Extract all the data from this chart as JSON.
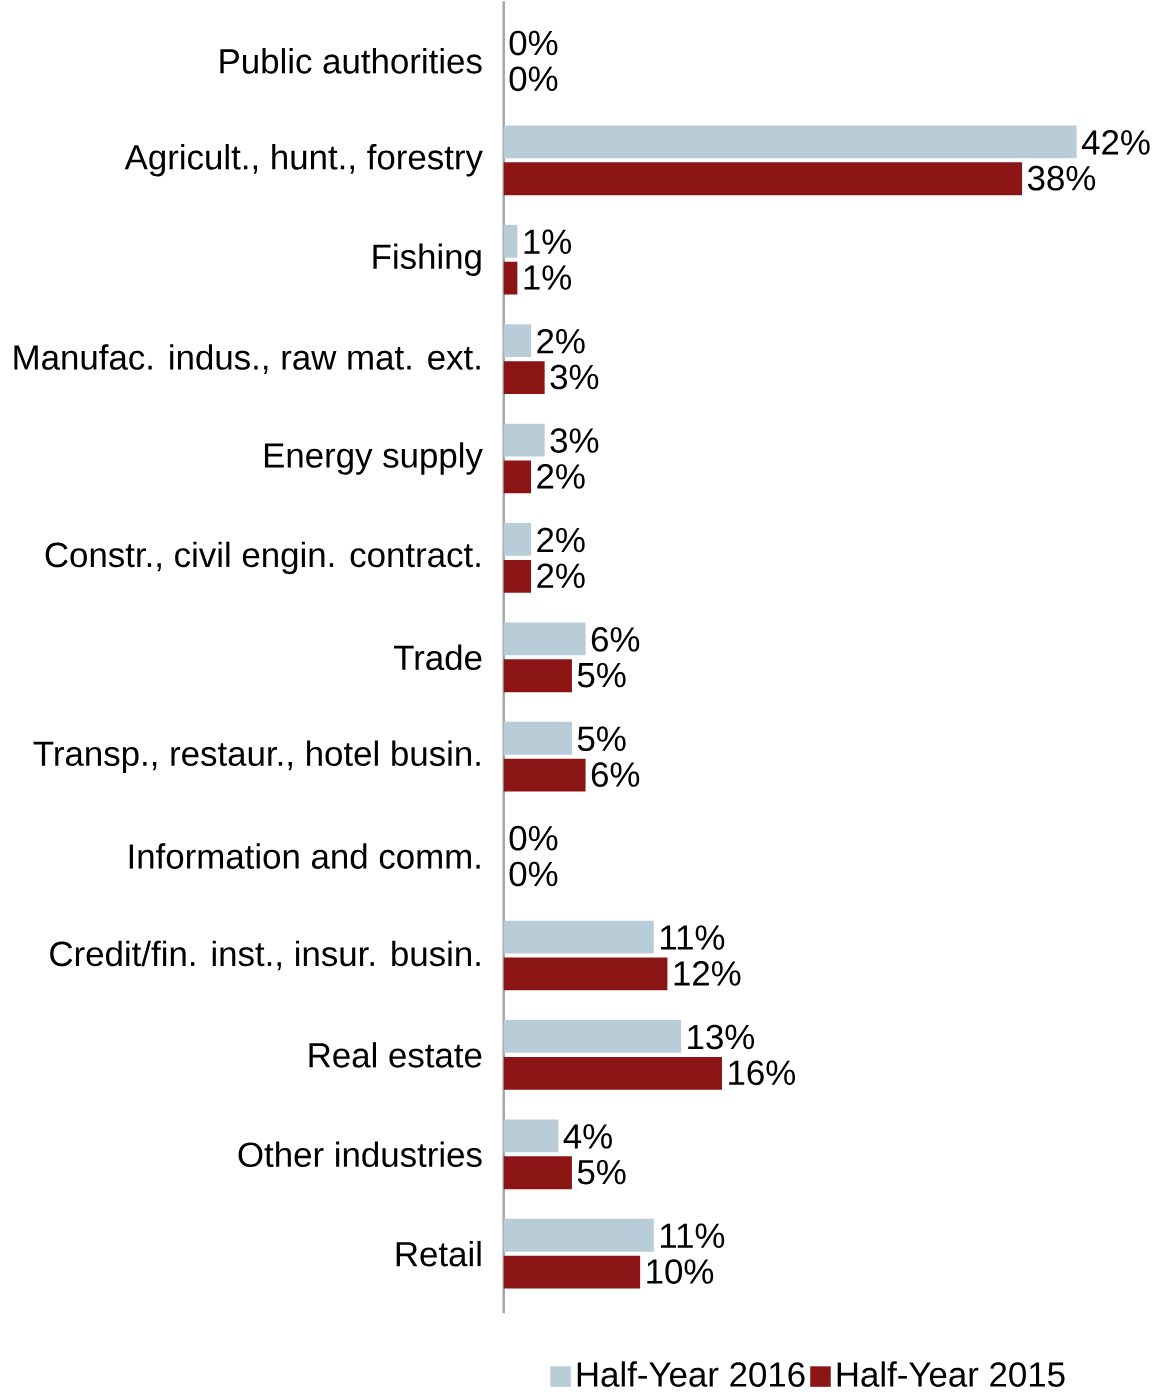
{
  "chart_data": {
    "type": "bar",
    "orientation": "horizontal",
    "categories": [
      "Public authorities",
      "Agricult., hunt., forestry",
      "Fishing",
      "Manufac. indus., raw mat. ext.",
      "Energy supply",
      "Constr., civil engin. contract.",
      "Trade",
      "Transp., restaur., hotel busin.",
      "Information and comm.",
      "Credit/fin. inst., insur. busin.",
      "Real estate",
      "Other industries",
      "Retail"
    ],
    "series": [
      {
        "name": "Half-Year 2016",
        "color": "#b9cdd9",
        "values": [
          0,
          42,
          1,
          2,
          3,
          2,
          6,
          5,
          0,
          11,
          13,
          4,
          11
        ],
        "value_labels": [
          "0%",
          "42%",
          "1%",
          "2%",
          "3%",
          "2%",
          "6%",
          "5%",
          "0%",
          "11%",
          "13%",
          "4%",
          "11%"
        ]
      },
      {
        "name": "Half-Year 2015",
        "color": "#8b1414",
        "values": [
          0,
          38,
          1,
          3,
          2,
          2,
          5,
          6,
          0,
          12,
          16,
          5,
          10
        ],
        "value_labels": [
          "0%",
          "38%",
          "1%",
          "3%",
          "2%",
          "2%",
          "5%",
          "6%",
          "0%",
          "12%",
          "16%",
          "5%",
          "10%"
        ]
      }
    ],
    "legend": "bottom"
  }
}
